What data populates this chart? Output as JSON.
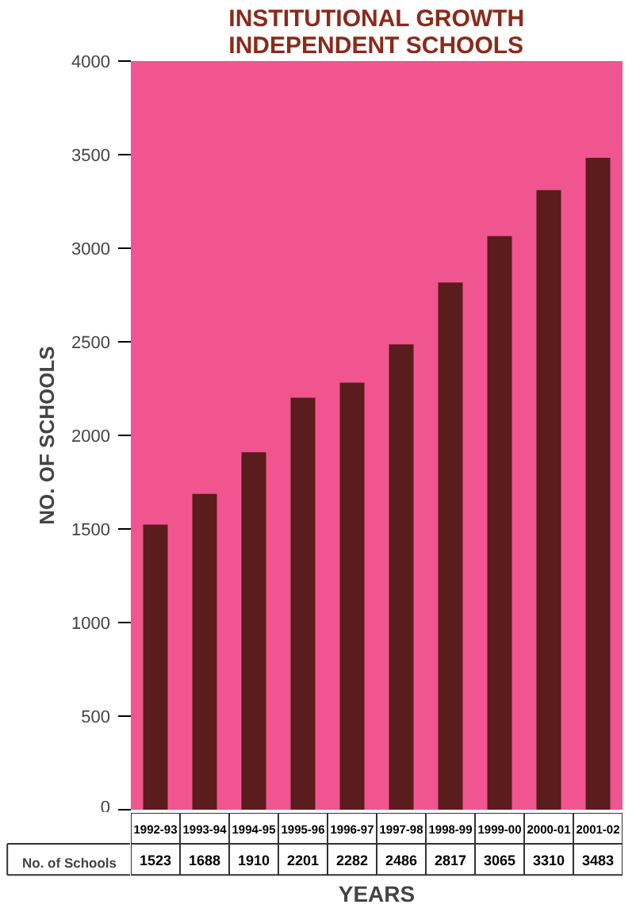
{
  "chart_data": {
    "type": "bar",
    "title": "INSTITUTIONAL GROWTH\nINDEPENDENT SCHOOLS",
    "xlabel": "YEARS",
    "ylabel": "NO. OF SCHOOLS",
    "categories": [
      "1992-93",
      "1993-94",
      "1994-95",
      "1995-96",
      "1996-97",
      "1997-98",
      "1998-99",
      "1999-00",
      "2000-01",
      "2001-02"
    ],
    "series": [
      {
        "name": "No. of Schools",
        "color": "#5a1c1c",
        "values": [
          1523,
          1688,
          1910,
          2201,
          2282,
          2486,
          2817,
          3065,
          3310,
          3483
        ]
      }
    ],
    "ylim": [
      0,
      4000
    ],
    "yticks": [
      0,
      500,
      1000,
      1500,
      2000,
      2500,
      3000,
      3500,
      4000
    ],
    "data_labels": true,
    "grid": false,
    "legend": "bottom left"
  }
}
